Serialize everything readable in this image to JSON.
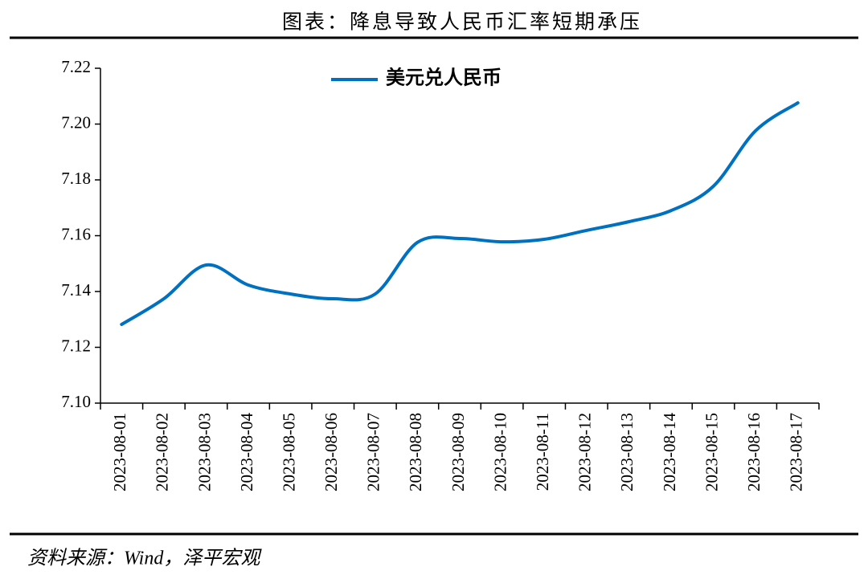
{
  "chart_data": {
    "type": "line",
    "title": "图表：降息导致人民币汇率短期承压",
    "source": "资料来源：Wind，泽平宏观",
    "categories": [
      "2023-08-01",
      "2023-08-02",
      "2023-08-03",
      "2023-08-04",
      "2023-08-05",
      "2023-08-06",
      "2023-08-07",
      "2023-08-08",
      "2023-08-09",
      "2023-08-10",
      "2023-08-11",
      "2023-08-12",
      "2023-08-13",
      "2023-08-14",
      "2023-08-15",
      "2023-08-16",
      "2023-08-17"
    ],
    "series": [
      {
        "name": "美元兑人民币",
        "color": "#0070c0",
        "values": [
          7.1282,
          7.1374,
          7.1495,
          7.1423,
          7.1391,
          7.1374,
          7.1391,
          7.1576,
          7.159,
          7.1578,
          7.1587,
          7.1619,
          7.165,
          7.169,
          7.1777,
          7.1976,
          7.2076
        ]
      }
    ],
    "ylim": [
      7.1,
      7.22
    ],
    "yticks": [
      {
        "value": 7.1,
        "label": "7.10"
      },
      7.12,
      7.14,
      7.16,
      7.18,
      {
        "value": 7.2,
        "label": "7.20"
      },
      7.22
    ],
    "legend": "top",
    "grid": false
  }
}
